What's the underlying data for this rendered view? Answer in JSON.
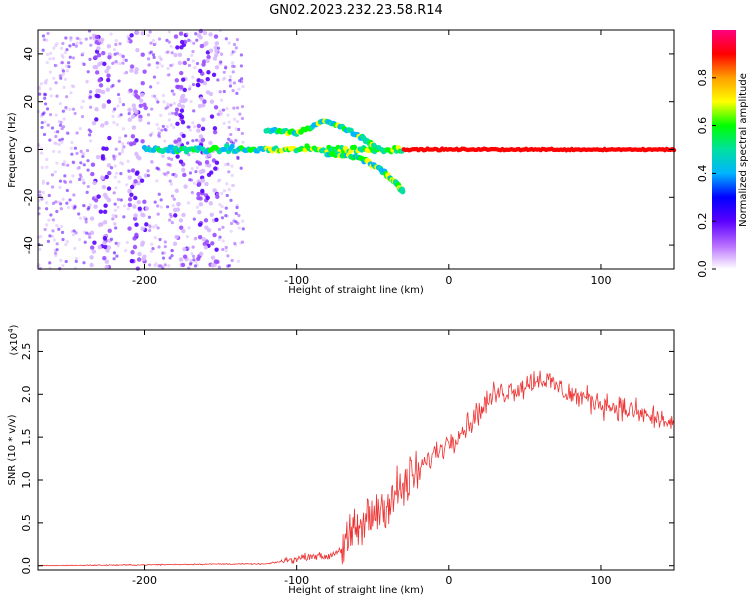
{
  "title": "GN02.2023.232.23.58.R14",
  "chart_data": [
    {
      "type": "heatmap",
      "xlabel": "Height of straight line (km)",
      "ylabel": "Frequency (Hz)",
      "xlim": [
        -270,
        148
      ],
      "ylim": [
        -50,
        50
      ],
      "xticks": [
        -200,
        -100,
        0,
        100
      ],
      "yticks": [
        -40,
        -20,
        0,
        20,
        40
      ],
      "colorbar": {
        "label": "Normalized spectral amplitude",
        "range": [
          0,
          1
        ],
        "ticks": [
          0.0,
          0.2,
          0.4,
          0.6,
          0.8
        ],
        "tick_labels": [
          "0.0",
          "0.2",
          "0.4",
          "0.6",
          "0.8"
        ],
        "colors": [
          "#ffffff",
          "#b76cff",
          "#5a00ff",
          "#0000ff",
          "#00b4ff",
          "#00e0a0",
          "#00ff00",
          "#ffff00",
          "#ffa000",
          "#ff0000",
          "#ff0080"
        ]
      },
      "features": [
        {
          "name": "main line",
          "x_range": [
            -200,
            148
          ],
          "frequency": 0
        },
        {
          "name": "upper branch",
          "x": [
            -120,
            -100,
            -80,
            -60,
            -45
          ],
          "y": [
            8,
            7,
            12,
            6,
            0
          ]
        },
        {
          "name": "lower branch",
          "x": [
            -80,
            -60,
            -45,
            -35,
            -30
          ],
          "y": [
            -2,
            -3,
            -8,
            -14,
            -18
          ]
        }
      ]
    },
    {
      "type": "line",
      "xlabel": "Height of straight line (km)",
      "ylabel": "SNR (10 * v/v)",
      "y_scale_label": "(x10",
      "y_scale_exp": "4",
      "xlim": [
        -270,
        148
      ],
      "ylim": [
        -0.05,
        2.75
      ],
      "xticks": [
        -200,
        -100,
        0,
        100
      ],
      "yticks": [
        0.0,
        0.5,
        1.0,
        1.5,
        2.0,
        2.5
      ],
      "ytick_labels": [
        "0.0",
        "0.5",
        "1.0",
        "1.5",
        "2.0",
        "2.5"
      ],
      "color": "#ee3333",
      "series": [
        {
          "x": [
            -270,
            -200,
            -150,
            -120,
            -100,
            -90,
            -80,
            -70,
            -60,
            -50,
            -40,
            -30,
            -20,
            -10,
            0,
            10,
            20,
            30,
            40,
            50,
            60,
            70,
            80,
            90,
            100,
            110,
            120,
            130,
            148
          ],
          "y": [
            0.0,
            0.01,
            0.02,
            0.02,
            0.08,
            0.12,
            0.1,
            0.2,
            0.4,
            0.6,
            0.75,
            0.9,
            1.1,
            1.3,
            1.45,
            1.6,
            1.8,
            2.0,
            2.05,
            2.1,
            2.2,
            2.1,
            2.0,
            1.95,
            1.9,
            1.85,
            1.8,
            1.75,
            1.65
          ]
        }
      ]
    }
  ]
}
